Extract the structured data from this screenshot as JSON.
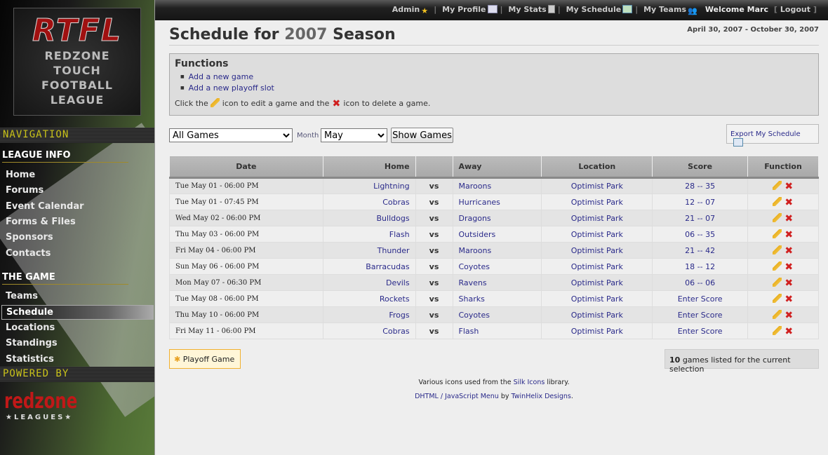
{
  "logo": {
    "title": "RTFL",
    "subtitle_lines": [
      "REDZONE",
      "TOUCH",
      "FOOTBALL",
      "LEAGUE"
    ]
  },
  "sidebar": {
    "navigation_label": "NAVIGATION",
    "sections": [
      {
        "title": "LEAGUE INFO",
        "items": [
          "Home",
          "Forums",
          "Event Calendar",
          "Forms & Files",
          "Sponsors",
          "Contacts"
        ]
      },
      {
        "title": "THE GAME",
        "items": [
          "Teams",
          "Schedule",
          "Locations",
          "Standings",
          "Statistics"
        ]
      }
    ],
    "active": "Schedule",
    "powered_label": "POWERED BY",
    "powered_logo": "redzone",
    "powered_logo_sub": "★LEAGUES★"
  },
  "topbar": {
    "links": [
      {
        "label": "Admin",
        "icon": "star-icon"
      },
      {
        "label": "My Profile",
        "icon": "vcard-icon"
      },
      {
        "label": "My Stats",
        "icon": "calculator-icon"
      },
      {
        "label": "My Schedule",
        "icon": "calendar-icon"
      },
      {
        "label": "My Teams",
        "icon": "group-icon"
      }
    ],
    "welcome": "Welcome Marc",
    "logout": "Logout"
  },
  "page": {
    "title_prefix": "Schedule for",
    "year": "2007",
    "title_suffix": "Season",
    "date_range": "April 30, 2007 - October 30, 2007"
  },
  "functions": {
    "title": "Functions",
    "links": [
      "Add a new game",
      "Add a new playoff slot"
    ],
    "hint_1": "Click the",
    "hint_2": "icon to edit a game and the",
    "hint_3": "icon to delete a game."
  },
  "filters": {
    "game_filter": "All Games",
    "month_label": "Month",
    "month": "May",
    "show_button": "Show Games",
    "export": "Export My Schedule"
  },
  "table": {
    "headers": [
      "Date",
      "Home",
      "",
      "Away",
      "Location",
      "Score",
      "Function"
    ],
    "rows": [
      {
        "date": "Tue May 01 - 06:00 PM",
        "home": "Lightning",
        "vs": "vs",
        "away": "Maroons",
        "location": "Optimist Park",
        "score": "28 -- 35"
      },
      {
        "date": "Tue May 01 - 07:45 PM",
        "home": "Cobras",
        "vs": "vs",
        "away": "Hurricanes",
        "location": "Optimist Park",
        "score": "12 -- 07"
      },
      {
        "date": "Wed May 02 - 06:00 PM",
        "home": "Bulldogs",
        "vs": "vs",
        "away": "Dragons",
        "location": "Optimist Park",
        "score": "21 -- 07"
      },
      {
        "date": "Thu May 03 - 06:00 PM",
        "home": "Flash",
        "vs": "vs",
        "away": "Outsiders",
        "location": "Optimist Park",
        "score": "06 -- 35"
      },
      {
        "date": "Fri May 04 - 06:00 PM",
        "home": "Thunder",
        "vs": "vs",
        "away": "Maroons",
        "location": "Optimist Park",
        "score": "21 -- 42"
      },
      {
        "date": "Sun May 06 - 06:00 PM",
        "home": "Barracudas",
        "vs": "vs",
        "away": "Coyotes",
        "location": "Optimist Park",
        "score": "18 -- 12"
      },
      {
        "date": "Mon May 07 - 06:30 PM",
        "home": "Devils",
        "vs": "vs",
        "away": "Ravens",
        "location": "Optimist Park",
        "score": "06 -- 06"
      },
      {
        "date": "Tue May 08 - 06:00 PM",
        "home": "Rockets",
        "vs": "vs",
        "away": "Sharks",
        "location": "Optimist Park",
        "score": "Enter Score"
      },
      {
        "date": "Thu May 10 - 06:00 PM",
        "home": "Frogs",
        "vs": "vs",
        "away": "Coyotes",
        "location": "Optimist Park",
        "score": "Enter Score"
      },
      {
        "date": "Fri May 11 - 06:00 PM",
        "home": "Cobras",
        "vs": "vs",
        "away": "Flash",
        "location": "Optimist Park",
        "score": "Enter Score"
      }
    ]
  },
  "bottom": {
    "playoff_button": "Playoff Game",
    "count": "10",
    "count_suffix": "games listed for the current selection"
  },
  "footer": {
    "line1_pre": "Various icons used from the",
    "line1_link": "Silk Icons",
    "line1_post": "library.",
    "line2_link1": "DHTML / JavaScript Menu",
    "line2_mid": "by",
    "line2_link2": "TwinHelix Designs",
    "line2_post": "."
  }
}
